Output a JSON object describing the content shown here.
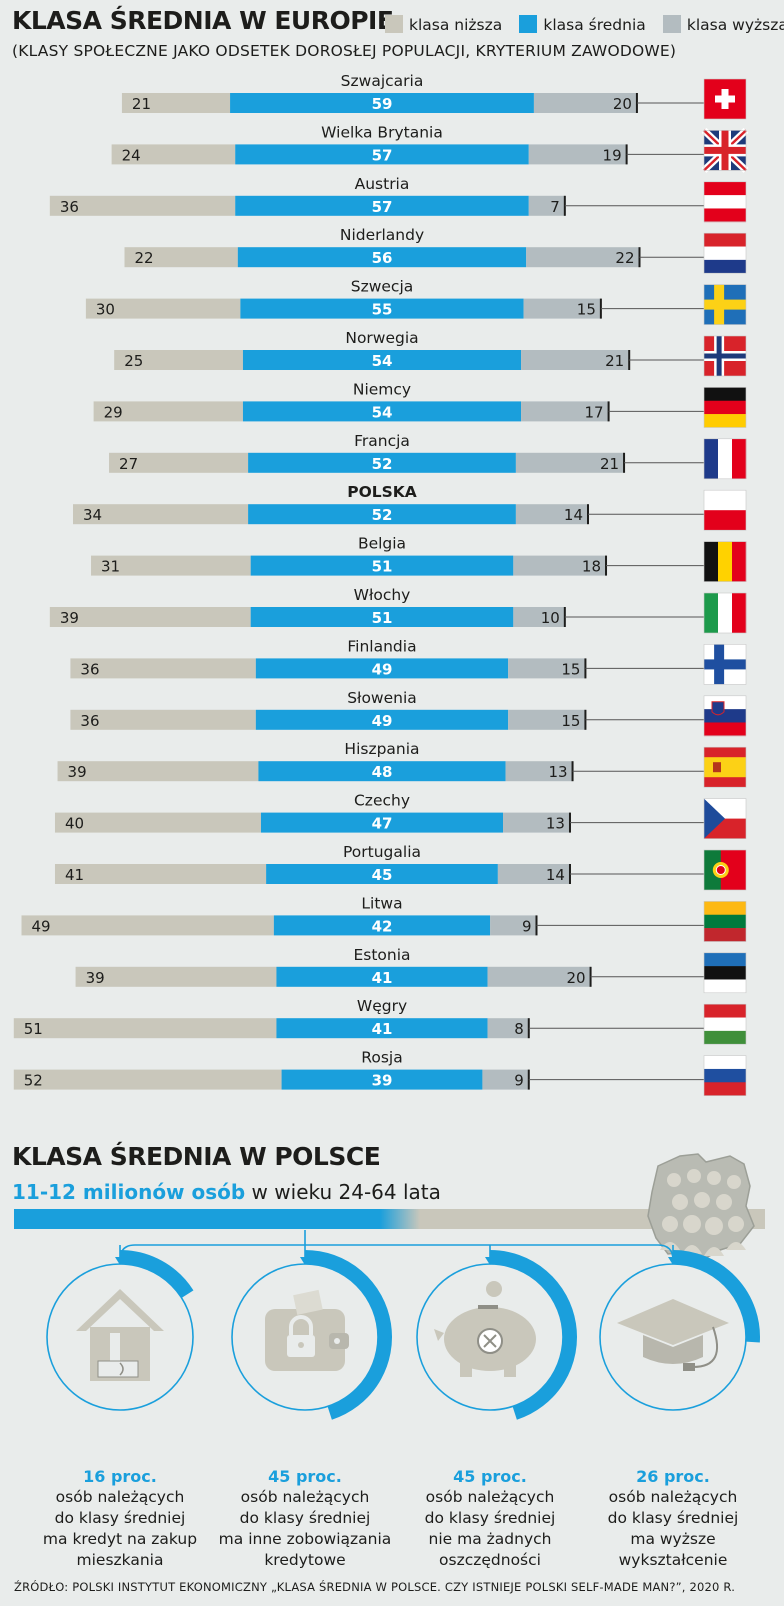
{
  "title": "KLASA ŚREDNIA W EUROPIE",
  "subtitle": "(KLASY SPOŁECZNE JAKO ODSETEK DOROSŁEJ POPULACJI, KRYTERIUM ZAWODOWE)",
  "legend": {
    "lower": "klasa niższa",
    "middle": "klasa średnia",
    "upper": "klasa wyższa"
  },
  "colors": {
    "lower": "#c9c7bb",
    "middle": "#1a9fdc",
    "upper": "#b3bcc0",
    "accent": "#1a9fdc"
  },
  "chart_data": {
    "type": "bar",
    "stacked": true,
    "orientation": "horizontal",
    "categories": [
      "Szwajcaria",
      "Wielka Brytania",
      "Austria",
      "Niderlandy",
      "Szwecja",
      "Norwegia",
      "Niemcy",
      "Francja",
      "POLSKA",
      "Belgia",
      "Włochy",
      "Finlandia",
      "Słowenia",
      "Hiszpania",
      "Czechy",
      "Portugalia",
      "Litwa",
      "Estonia",
      "Węgry",
      "Rosja"
    ],
    "series": [
      {
        "name": "klasa niższa",
        "values": [
          21,
          24,
          36,
          22,
          30,
          25,
          29,
          27,
          34,
          31,
          39,
          36,
          36,
          39,
          40,
          41,
          49,
          39,
          51,
          52
        ]
      },
      {
        "name": "klasa średnia",
        "values": [
          59,
          57,
          57,
          56,
          55,
          54,
          54,
          52,
          52,
          51,
          51,
          49,
          49,
          48,
          47,
          45,
          42,
          41,
          41,
          39
        ]
      },
      {
        "name": "klasa wyższa",
        "values": [
          20,
          19,
          7,
          22,
          15,
          21,
          17,
          21,
          14,
          18,
          10,
          15,
          15,
          13,
          13,
          14,
          9,
          20,
          8,
          9
        ]
      }
    ],
    "flags": [
      "flag-switzerland-icon",
      "flag-united-kingdom-icon",
      "flag-austria-icon",
      "flag-netherlands-icon",
      "flag-sweden-icon",
      "flag-norway-icon",
      "flag-germany-icon",
      "flag-france-icon",
      "flag-poland-icon",
      "flag-belgium-icon",
      "flag-italy-icon",
      "flag-finland-icon",
      "flag-slovenia-icon",
      "flag-spain-icon",
      "flag-czechia-icon",
      "flag-portugal-icon",
      "flag-lithuania-icon",
      "flag-estonia-icon",
      "flag-hungary-icon",
      "flag-russia-icon"
    ],
    "highlight": "POLSKA",
    "legend_position": "top-right"
  },
  "poland": {
    "title": "KLASA ŚREDNIA W POLSCE",
    "headline_highlight": "11-12 milionów osób",
    "headline_rest": " w wieku 24-64 lata",
    "map_icon": "poland-map-people-icon",
    "stats": [
      {
        "pct": "16 proc.",
        "value": 16,
        "lines": [
          "osób należących",
          "do klasy średniej",
          "ma kredyt na zakup",
          "mieszkania"
        ],
        "icon": "house-icon"
      },
      {
        "pct": "45 proc.",
        "value": 45,
        "lines": [
          "osób należących",
          "do klasy średniej",
          "ma inne zobowiązania",
          "kredytowe"
        ],
        "icon": "wallet-lock-icon"
      },
      {
        "pct": "45 proc.",
        "value": 45,
        "lines": [
          "osób należących",
          "do klasy średniej",
          "nie ma żadnych",
          "oszczędności"
        ],
        "icon": "piggy-bank-icon"
      },
      {
        "pct": "26 proc.",
        "value": 26,
        "lines": [
          "osób należących",
          "do klasy średniej",
          "ma wyższe",
          "wykształcenie"
        ],
        "icon": "graduation-cap-icon"
      }
    ]
  },
  "source": "ŹRÓDŁO: POLSKI INSTYTUT EKONOMICZNY „KLASA ŚREDNIA W POLSCE. CZY ISTNIEJE POLSKI SELF-MADE MAN?”, 2020 R."
}
